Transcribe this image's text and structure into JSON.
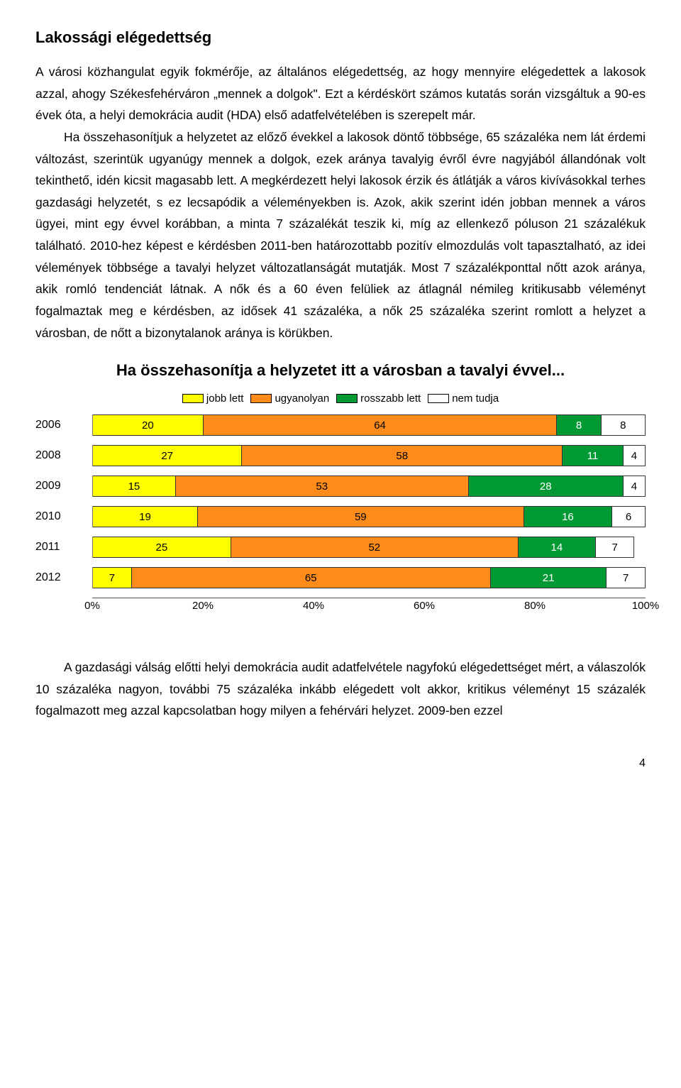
{
  "heading": "Lakossági elégedettség",
  "para1": "A városi közhangulat egyik fokmérője, az általános elégedettség, az hogy mennyire elégedettek a lakosok azzal, ahogy Székesfehérváron „mennek a dolgok\". Ezt a kérdéskört számos kutatás során vizsgáltuk a 90-es évek óta, a helyi demokrácia audit (HDA) első adatfelvételében is szerepelt már.",
  "para2": "Ha összehasonítjuk a helyzetet az előző évekkel a lakosok döntő többsége, 65 százaléka nem lát érdemi változást, szerintük ugyanúgy mennek a dolgok, ezek aránya tavalyig évről évre nagyjából állandónak volt tekinthető, idén kicsit magasabb lett. A megkérdezett helyi lakosok érzik és átlátják a város kivívásokkal terhes gazdasági helyzetét, s ez lecsapódik a véleményekben is. Azok, akik szerint idén jobban mennek a város ügyei, mint egy évvel korábban, a minta 7 százalékát teszik ki, míg az ellenkező póluson 21 százalékuk található. 2010-hez képest e kérdésben 2011-ben határozottabb pozitív elmozdulás volt tapasztalható, az idei vélemények többsége a tavalyi helyzet változatlanságát mutatják. Most 7 százalékponttal nőtt azok aránya, akik romló tendenciát látnak. A nők és a 60 éven felüliek az átlagnál némileg kritikusabb véleményt fogalmaztak meg e kérdésben, az idősek 41 százaléka, a nők 25 százaléka szerint romlott a helyzet a városban, de nőtt a bizonytalanok aránya is körükben.",
  "chart": {
    "title": "Ha összehasonítja a helyzetet itt a városban a tavalyi évvel...",
    "type": "stacked-bar-horizontal",
    "legend": [
      {
        "label": "jobb lett",
        "color": "#ffff00"
      },
      {
        "label": "ugyanolyan",
        "color": "#ff8c1a"
      },
      {
        "label": "rosszabb lett",
        "color": "#009933"
      },
      {
        "label": "nem tudja",
        "color": "#ffffff"
      }
    ],
    "rows": [
      {
        "year": "2006",
        "segments": [
          {
            "v": 20,
            "c": "#ffff00"
          },
          {
            "v": 64,
            "c": "#ff8c1a"
          },
          {
            "v": 8,
            "c": "#009933"
          },
          {
            "v": 8,
            "c": "#ffffff"
          }
        ]
      },
      {
        "year": "2008",
        "segments": [
          {
            "v": 27,
            "c": "#ffff00"
          },
          {
            "v": 58,
            "c": "#ff8c1a"
          },
          {
            "v": 11,
            "c": "#009933"
          },
          {
            "v": 4,
            "c": "#ffffff"
          }
        ]
      },
      {
        "year": "2009",
        "segments": [
          {
            "v": 15,
            "c": "#ffff00"
          },
          {
            "v": 53,
            "c": "#ff8c1a"
          },
          {
            "v": 28,
            "c": "#009933"
          },
          {
            "v": 4,
            "c": "#ffffff"
          }
        ]
      },
      {
        "year": "2010",
        "segments": [
          {
            "v": 19,
            "c": "#ffff00"
          },
          {
            "v": 59,
            "c": "#ff8c1a"
          },
          {
            "v": 16,
            "c": "#009933"
          },
          {
            "v": 6,
            "c": "#ffffff"
          }
        ]
      },
      {
        "year": "2011",
        "segments": [
          {
            "v": 25,
            "c": "#ffff00"
          },
          {
            "v": 52,
            "c": "#ff8c1a"
          },
          {
            "v": 14,
            "c": "#009933"
          },
          {
            "v": 7,
            "c": "#ffffff",
            "label": "7"
          }
        ],
        "totalDisplay": 98
      },
      {
        "year": "2012",
        "segments": [
          {
            "v": 7,
            "c": "#ffff00"
          },
          {
            "v": 65,
            "c": "#ff8c1a"
          },
          {
            "v": 21,
            "c": "#009933"
          },
          {
            "v": 7,
            "c": "#ffffff"
          }
        ]
      }
    ],
    "axis": {
      "ticks": [
        0,
        20,
        40,
        60,
        80,
        100
      ],
      "suffix": "%"
    }
  },
  "para3": "A gazdasági válság előtti helyi demokrácia audit adatfelvétele nagyfokú elégedettséget mért, a válaszolók 10 százaléka nagyon, további 75 százaléka inkább elégedett volt akkor, kritikus véleményt 15 százalék fogalmazott meg azzal kapcsolatban hogy milyen a fehérvári helyzet. 2009-ben ezzel",
  "pageNumber": "4"
}
